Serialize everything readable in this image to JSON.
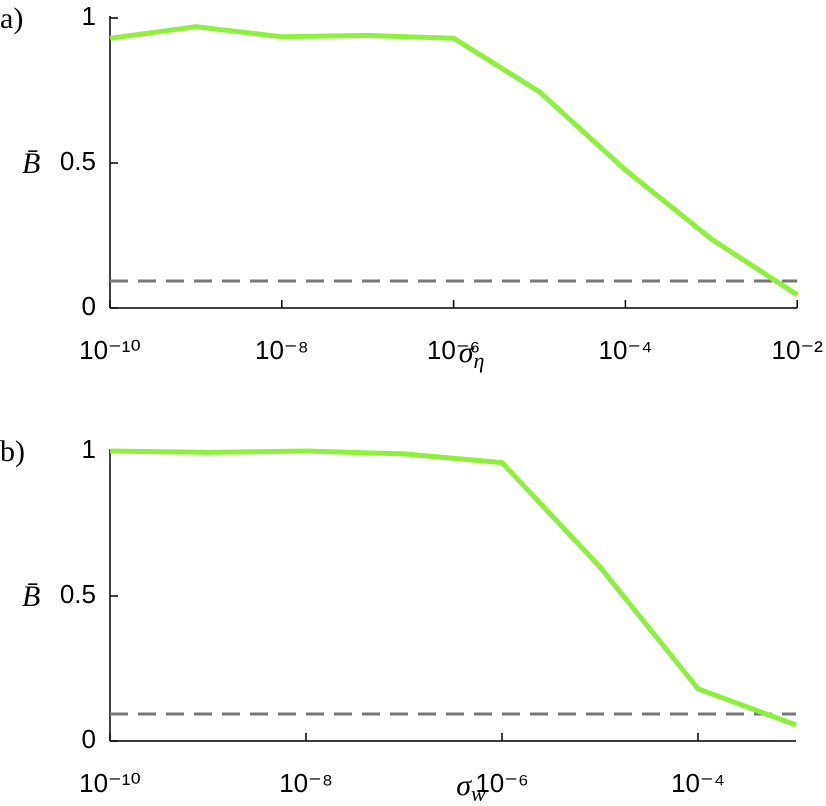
{
  "chart_data": [
    {
      "type": "line",
      "panel_label": "a)",
      "ylabel": "B̄",
      "xlabel": {
        "symbol": "σ",
        "subscript": "η"
      },
      "log_x": true,
      "x": [
        1e-10,
        1e-09,
        1e-08,
        1e-07,
        1e-06,
        1e-05,
        0.0001,
        0.001,
        0.01
      ],
      "series": [
        {
          "color": "#8ef03c",
          "values": [
            0.93,
            0.97,
            0.935,
            0.94,
            0.93,
            0.745,
            0.476,
            0.238,
            0.045
          ]
        }
      ],
      "reference_line": {
        "value": 0.093,
        "color": "#777777"
      },
      "xlim": [
        1e-10,
        0.01
      ],
      "ylim": [
        0,
        1
      ],
      "xticks": [
        {
          "value": 1e-10,
          "label": "10⁻¹⁰"
        },
        {
          "value": 1e-08,
          "label": "10⁻⁸"
        },
        {
          "value": 1e-06,
          "label": "10⁻⁶"
        },
        {
          "value": 0.0001,
          "label": "10⁻⁴"
        },
        {
          "value": 0.01,
          "label": "10⁻²"
        }
      ],
      "yticks": [
        0,
        0.5,
        1
      ]
    },
    {
      "type": "line",
      "panel_label": "b)",
      "ylabel": "B̄",
      "xlabel": {
        "symbol": "σ",
        "subscript": "w"
      },
      "log_x": true,
      "x": [
        1e-10,
        1e-09,
        1e-08,
        1e-07,
        1e-06,
        1e-05,
        0.0001,
        0.001
      ],
      "series": [
        {
          "color": "#8ef03c",
          "values": [
            1.0,
            0.995,
            1.0,
            0.99,
            0.96,
            0.6,
            0.18,
            0.055
          ]
        }
      ],
      "reference_line": {
        "value": 0.093,
        "color": "#777777"
      },
      "xlim": [
        1e-10,
        0.001
      ],
      "ylim": [
        0,
        1
      ],
      "xticks": [
        {
          "value": 1e-10,
          "label": "10⁻¹⁰"
        },
        {
          "value": 1e-08,
          "label": "10⁻⁸"
        },
        {
          "value": 1e-06,
          "label": "10⁻⁶"
        },
        {
          "value": 0.0001,
          "label": "10⁻⁴"
        }
      ],
      "yticks": [
        0,
        0.5,
        1
      ]
    }
  ]
}
